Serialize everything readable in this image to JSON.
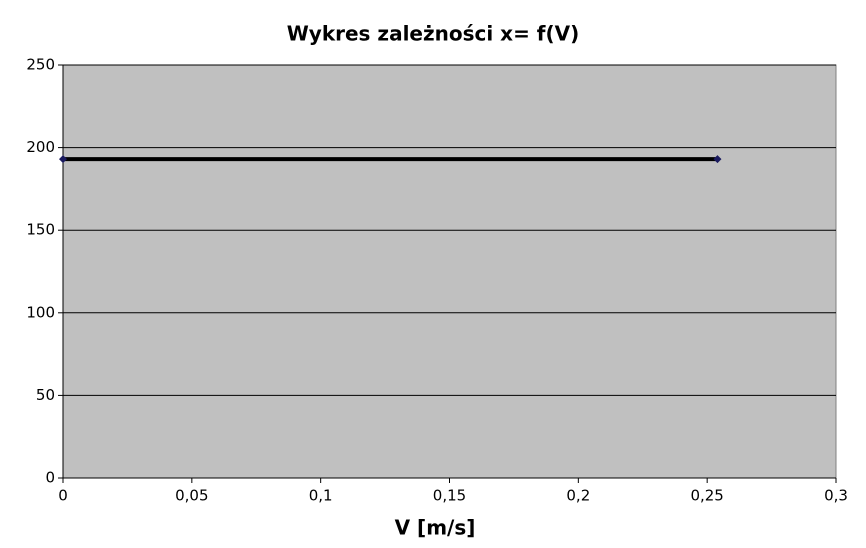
{
  "chart_data": {
    "type": "line",
    "title": "Wykres zależności x= f(V)",
    "x_label": "V [m/s]",
    "x": [
      0,
      0.254
    ],
    "series": [
      {
        "color": "#000000",
        "marker_color": "#1a1a5e",
        "values": [
          193,
          193
        ]
      }
    ],
    "xlim": [
      0,
      0.3
    ],
    "xticks": [
      0,
      {
        "value": 0.05,
        "label": "0,05"
      },
      {
        "value": 0.1,
        "label": "0,1"
      },
      {
        "value": 0.15,
        "label": "0,15"
      },
      {
        "value": 0.2,
        "label": "0,2"
      },
      {
        "value": 0.25,
        "label": "0,25"
      },
      {
        "value": 0.3,
        "label": "0,3"
      }
    ],
    "ylim": [
      0,
      250
    ],
    "yticks": [
      0,
      50,
      100,
      150,
      200,
      250
    ],
    "grid": true,
    "plot_background": "#c0c0c0"
  }
}
